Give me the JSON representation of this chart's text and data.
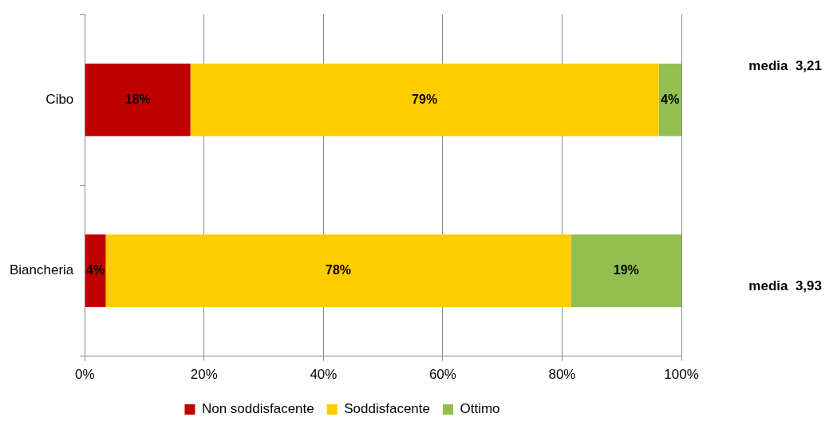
{
  "chart_data": {
    "type": "bar",
    "orientation": "horizontal",
    "stacked": true,
    "categories": [
      "Cibo",
      "Biancheria"
    ],
    "series": [
      {
        "name": "Non soddisfacente",
        "color": "#c00000",
        "values": [
          17.7,
          3.5
        ],
        "value_labels": [
          "18%",
          "4%"
        ]
      },
      {
        "name": "Soddisfacente",
        "color": "#ffcc00",
        "values": [
          78.5,
          78.0
        ],
        "value_labels": [
          "79%",
          "78%"
        ]
      },
      {
        "name": "Ottimo",
        "color": "#92c050",
        "values": [
          3.8,
          18.5
        ],
        "value_labels": [
          "4%",
          "19%"
        ]
      }
    ],
    "xlim": [
      0,
      100
    ],
    "xticks": [
      {
        "value": 0,
        "label": "0%"
      },
      {
        "value": 20,
        "label": "20%"
      },
      {
        "value": 40,
        "label": "40%"
      },
      {
        "value": 60,
        "label": "60%"
      },
      {
        "value": 80,
        "label": "80%"
      },
      {
        "value": 100,
        "label": "100%"
      }
    ],
    "grid": "x",
    "legend": "bottom",
    "annotations": [
      "media  3,21",
      "media  3,93"
    ]
  }
}
